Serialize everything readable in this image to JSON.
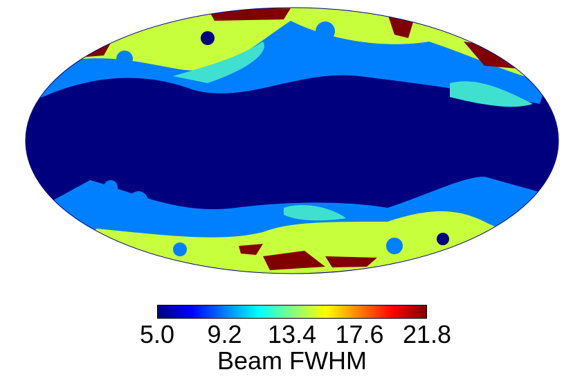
{
  "map": {
    "projection": "mollweide",
    "base_color": "#00007f"
  },
  "colorbar": {
    "label": "Beam FWHM",
    "ticks": [
      "5.0",
      "9.2",
      "13.4",
      "17.6",
      "21.8"
    ],
    "min": 5.0,
    "max": 21.8,
    "colormap": "jet",
    "colors": [
      "#00007f",
      "#0000ff",
      "#007fff",
      "#00ffff",
      "#7fff7f",
      "#ffff00",
      "#ff7f00",
      "#ff0000",
      "#7f0000"
    ]
  },
  "legend_palette": {
    "low": "#00007f",
    "mid_blue": "#0080ff",
    "yellow_green": "#c8ff3c",
    "high": "#800000"
  }
}
